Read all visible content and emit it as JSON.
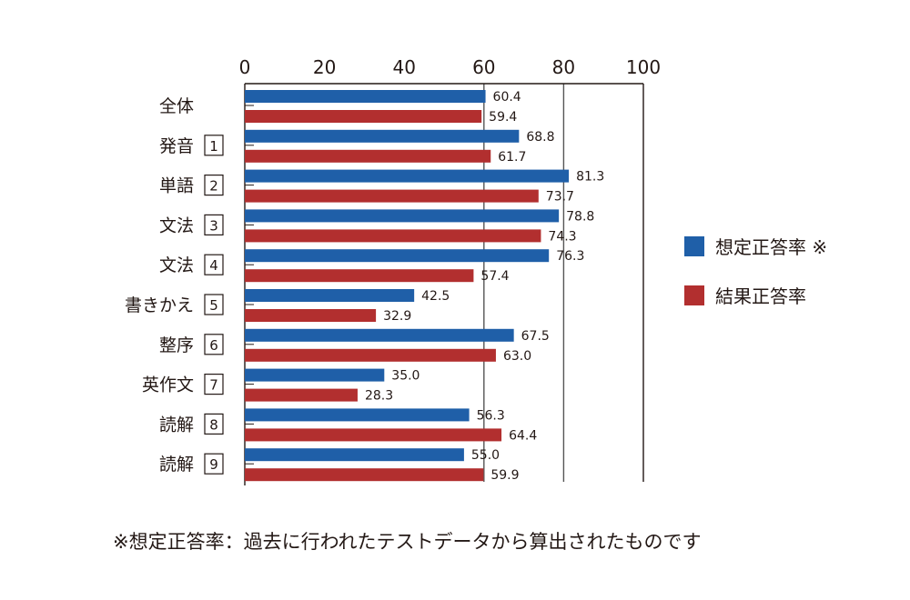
{
  "chart_data": {
    "type": "bar",
    "orientation": "horizontal",
    "xlim": [
      0,
      100
    ],
    "xticks": [
      "0",
      "20",
      "40",
      "60",
      "80",
      "100"
    ],
    "gridlines": "vertical at 60 and 80",
    "categories": [
      {
        "label": "全体",
        "number": ""
      },
      {
        "label": "発音",
        "number": "1"
      },
      {
        "label": "単語",
        "number": "2"
      },
      {
        "label": "文法",
        "number": "3"
      },
      {
        "label": "文法",
        "number": "4"
      },
      {
        "label": "書きかえ",
        "number": "5"
      },
      {
        "label": "整序",
        "number": "6"
      },
      {
        "label": "英作文",
        "number": "7"
      },
      {
        "label": "読解",
        "number": "8"
      },
      {
        "label": "読解",
        "number": "9"
      }
    ],
    "series": [
      {
        "name": "想定正答率 ※",
        "color": "#1f5fa8",
        "values": [
          60.4,
          68.8,
          81.3,
          78.8,
          76.3,
          42.5,
          67.5,
          35.0,
          56.3,
          55.0
        ],
        "labels": [
          "60.4",
          "68.8",
          "81.3",
          "78.8",
          "76.3",
          "42.5",
          "67.5",
          "35.0",
          "56.3",
          "55.0"
        ]
      },
      {
        "name": "結果正答率",
        "color": "#b22f2f",
        "values": [
          59.4,
          61.7,
          73.7,
          74.3,
          57.4,
          32.9,
          63.0,
          28.3,
          64.4,
          59.9
        ],
        "labels": [
          "59.4",
          "61.7",
          "73.7",
          "74.3",
          "57.4",
          "32.9",
          "63.0",
          "28.3",
          "64.4",
          "59.9"
        ]
      }
    ],
    "legend_position": "right"
  },
  "footnote": "※想定正答率：過去に行われたテストデータから算出されたものです"
}
